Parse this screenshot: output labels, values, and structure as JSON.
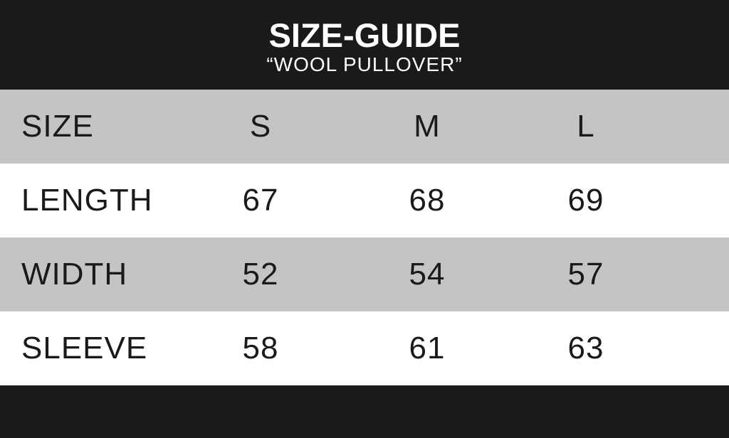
{
  "header": {
    "title": "SIZE-GUIDE",
    "subtitle": "“WOOL PULLOVER”"
  },
  "table": {
    "columns": [
      "SIZE",
      "S",
      "M",
      "L"
    ],
    "rows": [
      {
        "label": "LENGTH",
        "values": [
          "67",
          "68",
          "69"
        ]
      },
      {
        "label": "WIDTH",
        "values": [
          "52",
          "54",
          "57"
        ]
      },
      {
        "label": "SLEEVE",
        "values": [
          "58",
          "61",
          "63"
        ]
      }
    ]
  },
  "colors": {
    "background": "#1a1a1a",
    "row_gray": "#c4c4c4",
    "row_white": "#ffffff",
    "text_dark": "#1a1a1a"
  }
}
